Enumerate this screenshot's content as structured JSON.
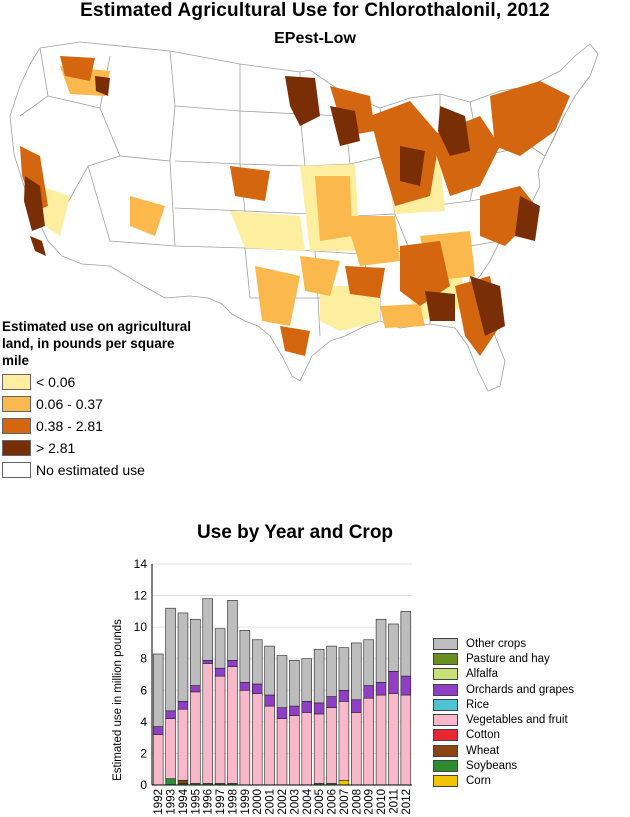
{
  "title": "Estimated Agricultural Use for Chlorothalonil, 2012",
  "subtitle": "EPest-Low",
  "map_legend": {
    "title": "Estimated use on agricultural land, in pounds per square mile",
    "items": [
      {
        "label": "< 0.06",
        "color": "#fdeea0"
      },
      {
        "label": "0.06 - 0.37",
        "color": "#fbb84c"
      },
      {
        "label": "0.38 - 2.81",
        "color": "#d3660f"
      },
      {
        "label": "> 2.81",
        "color": "#7a2e06"
      },
      {
        "label": "No estimated use",
        "color": "#ffffff"
      }
    ]
  },
  "chart_data": {
    "type": "bar",
    "title": "Use by Year and Crop",
    "ylabel": "Estimated use in million pounds",
    "xlabel": "",
    "ylim": [
      0,
      14
    ],
    "yticks": [
      0,
      2,
      4,
      6,
      8,
      10,
      12,
      14
    ],
    "categories": [
      "1992",
      "1993",
      "1994",
      "1995",
      "1996",
      "1997",
      "1998",
      "1999",
      "2000",
      "2001",
      "2002",
      "2003",
      "2004",
      "2005",
      "2006",
      "2007",
      "2008",
      "2009",
      "2010",
      "2011",
      "2012"
    ],
    "series": [
      {
        "name": "Corn",
        "color": "#f2c500",
        "values": [
          0,
          0,
          0,
          0,
          0,
          0,
          0,
          0,
          0,
          0,
          0,
          0,
          0,
          0,
          0,
          0.3,
          0,
          0,
          0,
          0,
          0
        ]
      },
      {
        "name": "Soybeans",
        "color": "#2e8b2e",
        "values": [
          0,
          0.4,
          0.1,
          0.1,
          0.1,
          0.1,
          0.1,
          0,
          0,
          0,
          0,
          0,
          0,
          0.1,
          0.1,
          0,
          0,
          0,
          0,
          0,
          0
        ]
      },
      {
        "name": "Wheat",
        "color": "#8b4513",
        "values": [
          0,
          0,
          0.2,
          0,
          0,
          0,
          0,
          0,
          0,
          0,
          0,
          0,
          0,
          0,
          0,
          0,
          0,
          0,
          0,
          0,
          0
        ]
      },
      {
        "name": "Cotton",
        "color": "#e8262f",
        "values": [
          0,
          0,
          0,
          0,
          0,
          0,
          0,
          0,
          0,
          0,
          0,
          0,
          0,
          0,
          0,
          0,
          0,
          0,
          0,
          0,
          0
        ]
      },
      {
        "name": "Vegetables and fruit",
        "color": "#f8b8cc",
        "values": [
          3.2,
          3.8,
          4.5,
          5.8,
          7.6,
          6.8,
          7.4,
          6.0,
          5.8,
          5.0,
          4.2,
          4.4,
          4.6,
          4.4,
          4.8,
          5.0,
          4.6,
          5.5,
          5.7,
          5.8,
          5.7
        ]
      },
      {
        "name": "Rice",
        "color": "#4fc3d6",
        "values": [
          0,
          0,
          0,
          0,
          0,
          0,
          0,
          0,
          0,
          0,
          0,
          0,
          0,
          0,
          0,
          0,
          0,
          0,
          0,
          0,
          0
        ]
      },
      {
        "name": "Orchards and grapes",
        "color": "#8e3fc5",
        "values": [
          0.5,
          0.5,
          0.5,
          0.4,
          0.2,
          0.5,
          0.4,
          0.5,
          0.6,
          0.7,
          0.7,
          0.6,
          0.7,
          0.7,
          0.7,
          0.7,
          0.8,
          0.8,
          0.8,
          1.4,
          1.2
        ]
      },
      {
        "name": "Alfalfa",
        "color": "#c7e07a",
        "values": [
          0,
          0,
          0,
          0,
          0,
          0,
          0,
          0,
          0,
          0,
          0,
          0,
          0,
          0,
          0,
          0,
          0,
          0,
          0,
          0,
          0
        ]
      },
      {
        "name": "Pasture and hay",
        "color": "#6b8e23",
        "values": [
          0,
          0,
          0,
          0,
          0,
          0,
          0,
          0,
          0,
          0,
          0,
          0,
          0,
          0,
          0,
          0,
          0,
          0,
          0,
          0,
          0
        ]
      },
      {
        "name": "Other crops",
        "color": "#bdbdbd",
        "values": [
          4.6,
          6.5,
          5.6,
          4.2,
          3.9,
          2.5,
          3.8,
          3.3,
          2.8,
          3.1,
          3.3,
          2.9,
          2.7,
          3.4,
          3.2,
          2.7,
          3.6,
          2.9,
          4.0,
          3.0,
          4.1
        ]
      }
    ]
  }
}
